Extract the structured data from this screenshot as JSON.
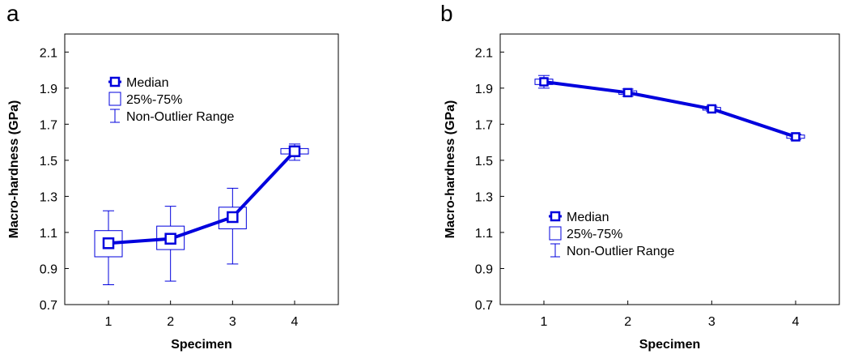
{
  "chart_data": [
    {
      "panel": "a",
      "type": "line",
      "xlabel": "Specimen",
      "ylabel": "Macro-hardness (GPa)",
      "categories": [
        "1",
        "2",
        "3",
        "4"
      ],
      "yticks": [
        "0.7",
        "0.9",
        "1.1",
        "1.3",
        "1.5",
        "1.7",
        "1.9",
        "2.1"
      ],
      "ylim": [
        0.7,
        2.2
      ],
      "grid": false,
      "legend_position": "upper-left",
      "legend": [
        "Median",
        "25%-75%",
        "Non-Outlier Range"
      ],
      "series": [
        {
          "name": "Median",
          "median": [
            1.04,
            1.065,
            1.185,
            1.55
          ],
          "q1": [
            0.965,
            1.005,
            1.12,
            1.535
          ],
          "q3": [
            1.11,
            1.135,
            1.24,
            1.565
          ],
          "min": [
            0.81,
            0.83,
            0.925,
            1.5
          ],
          "max": [
            1.22,
            1.245,
            1.345,
            1.59
          ]
        }
      ]
    },
    {
      "panel": "b",
      "type": "line",
      "xlabel": "Specimen",
      "ylabel": "Macro-hardness (GPa)",
      "categories": [
        "1",
        "2",
        "3",
        "4"
      ],
      "yticks": [
        "0.7",
        "0.9",
        "1.1",
        "1.3",
        "1.5",
        "1.7",
        "1.9",
        "2.1"
      ],
      "ylim": [
        0.7,
        2.2
      ],
      "grid": false,
      "legend_position": "lower-left",
      "legend": [
        "Median",
        "25%-75%",
        "Non-Outlier Range"
      ],
      "series": [
        {
          "name": "Median",
          "median": [
            1.935,
            1.875,
            1.785,
            1.63
          ],
          "q1": [
            1.92,
            1.865,
            1.778,
            1.622
          ],
          "q3": [
            1.95,
            1.885,
            1.793,
            1.64
          ],
          "min": [
            1.9,
            1.855,
            1.772,
            1.615
          ],
          "max": [
            1.97,
            1.895,
            1.8,
            1.645
          ]
        }
      ]
    }
  ],
  "colors": {
    "series": "#0000dd",
    "axis": "#000000"
  }
}
